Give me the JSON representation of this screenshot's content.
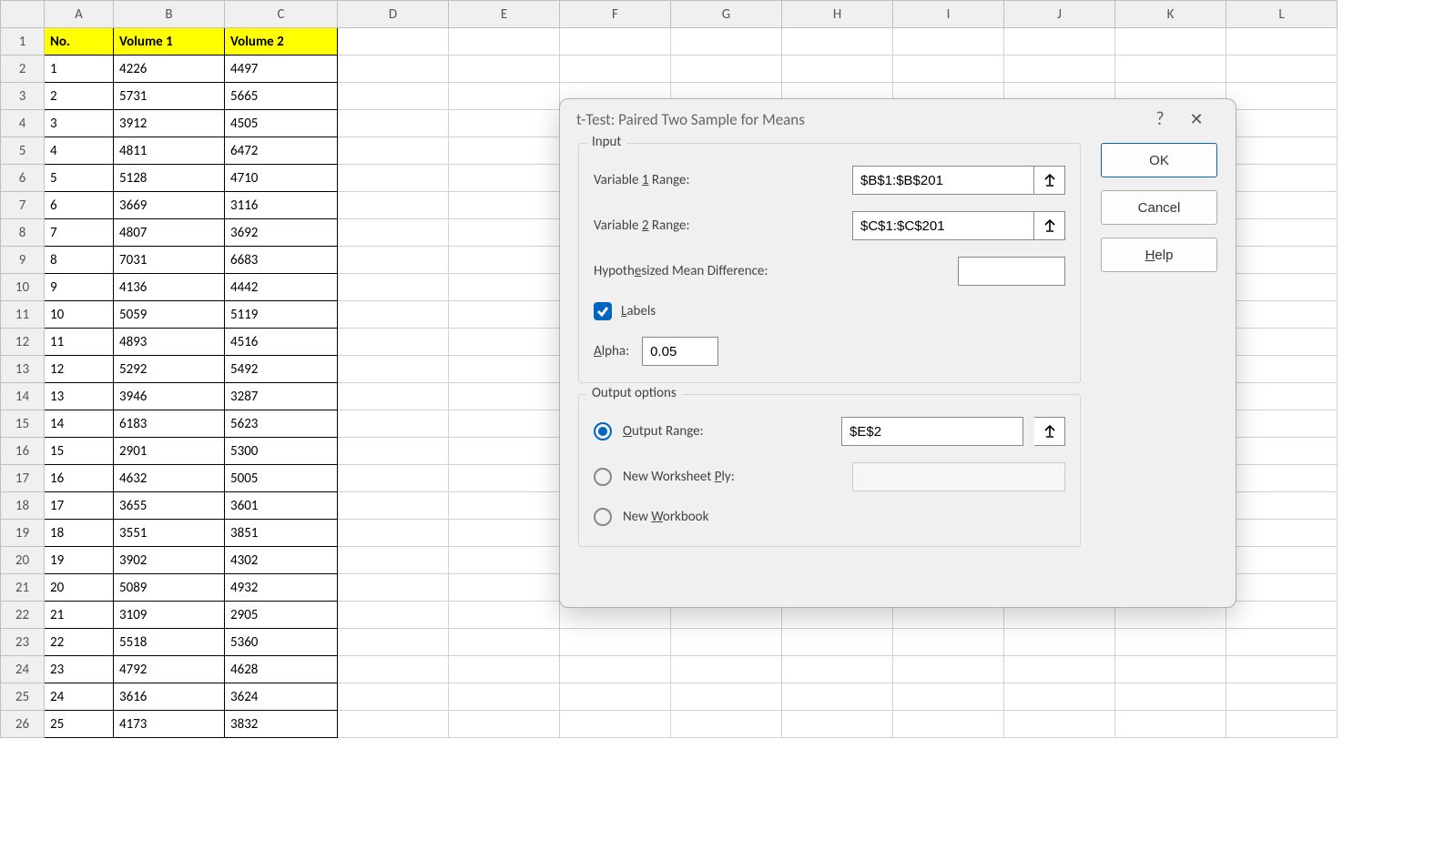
{
  "spreadsheet": {
    "column_letters": [
      "A",
      "B",
      "C",
      "D",
      "E",
      "F",
      "G",
      "H",
      "I",
      "J",
      "K",
      "L"
    ],
    "headers": [
      "No.",
      "Volume 1",
      "Volume 2"
    ],
    "rows": [
      [
        1,
        4226,
        4497
      ],
      [
        2,
        5731,
        5665
      ],
      [
        3,
        3912,
        4505
      ],
      [
        4,
        4811,
        6472
      ],
      [
        5,
        5128,
        4710
      ],
      [
        6,
        3669,
        3116
      ],
      [
        7,
        4807,
        3692
      ],
      [
        8,
        7031,
        6683
      ],
      [
        9,
        4136,
        4442
      ],
      [
        10,
        5059,
        5119
      ],
      [
        11,
        4893,
        4516
      ],
      [
        12,
        5292,
        5492
      ],
      [
        13,
        3946,
        3287
      ],
      [
        14,
        6183,
        5623
      ],
      [
        15,
        2901,
        5300
      ],
      [
        16,
        4632,
        5005
      ],
      [
        17,
        3655,
        3601
      ],
      [
        18,
        3551,
        3851
      ],
      [
        19,
        3902,
        4302
      ],
      [
        20,
        5089,
        4932
      ],
      [
        21,
        3109,
        2905
      ],
      [
        22,
        5518,
        5360
      ],
      [
        23,
        4792,
        4628
      ],
      [
        24,
        3616,
        3624
      ],
      [
        25,
        4173,
        3832
      ]
    ],
    "header_bg": "#ffff00"
  },
  "dialog": {
    "title": "t-Test: Paired Two Sample for Means",
    "ok": "OK",
    "cancel": "Cancel",
    "help": "Help",
    "help_underline": "H",
    "input_group": "Input",
    "var1_label_prefix": "Variable ",
    "var1_underline": "1",
    "var1_label_suffix": " Range:",
    "var1_value": "$B$1:$B$201",
    "var2_label_prefix": "Variable ",
    "var2_underline": "2",
    "var2_label_suffix": " Range:",
    "var2_value": "$C$1:$C$201",
    "hyp_label_prefix": "Hypoth",
    "hyp_underline": "e",
    "hyp_label_suffix": "sized Mean Difference:",
    "hyp_value": "",
    "labels_checked": true,
    "labels_underline": "L",
    "labels_text": "abels",
    "alpha_underline": "A",
    "alpha_text": "lpha:",
    "alpha_value": "0.05",
    "output_group": "Output options",
    "out_range_underline": "O",
    "out_range_text": "utput Range:",
    "out_range_value": "$E$2",
    "new_ws_text_pre": "New Worksheet ",
    "new_ws_underline": "P",
    "new_ws_text_post": "ly:",
    "new_wb_text_pre": "New ",
    "new_wb_underline": "W",
    "new_wb_text_post": "orkbook",
    "selected_output": "range"
  }
}
